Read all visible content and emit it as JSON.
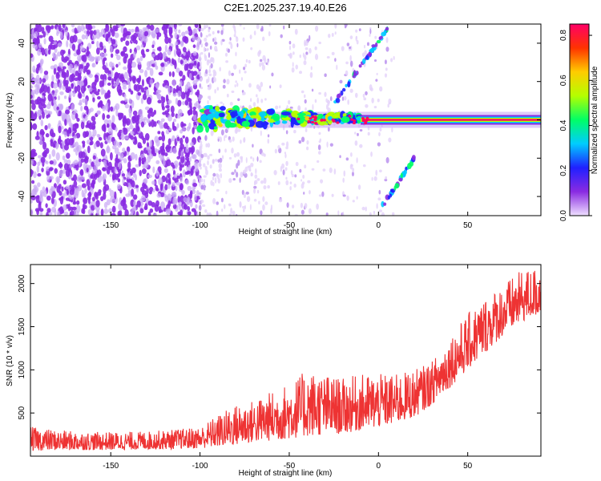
{
  "title": "C2E1.2025.237.19.40.E26",
  "chart_data": [
    {
      "type": "heatmap",
      "title": "C2E1.2025.237.19.40.E26",
      "xlabel": "Height of straight line (km)",
      "ylabel": "Frequency (Hz)",
      "xlim": [
        -195,
        91
      ],
      "ylim": [
        -50,
        50
      ],
      "xticks": [
        -150,
        -100,
        -50,
        0,
        50
      ],
      "yticks": [
        -40,
        -20,
        0,
        20,
        40
      ],
      "colorbar": {
        "label": "Normalized spectral amplitude",
        "range": [
          0.0,
          0.85
        ],
        "ticks": [
          0.0,
          0.2,
          0.4,
          0.6,
          0.8
        ],
        "tick_labels": [
          "0.0",
          "0.2",
          "0.4",
          "0.6",
          "0.8"
        ],
        "colors": [
          "#efe0ff",
          "#8a2be2",
          "#2020ff",
          "#00ccff",
          "#00ff66",
          "#b4ff00",
          "#ffcc00",
          "#ff3300",
          "#ff0066"
        ]
      },
      "features": [
        {
          "name": "noise region",
          "x_range": [
            -195,
            -100
          ],
          "y_range": [
            -50,
            50
          ],
          "amplitude": 0.05
        },
        {
          "name": "central band",
          "x_range": [
            -100,
            91
          ],
          "y_center": 0,
          "amplitude_start": 0.2,
          "amplitude_end": 0.8
        },
        {
          "name": "upper chirp",
          "x_range": [
            -25,
            5
          ],
          "y_range": [
            8,
            48
          ]
        },
        {
          "name": "lower chirp",
          "x_range": [
            0,
            20
          ],
          "y_range": [
            -48,
            -20
          ]
        }
      ]
    },
    {
      "type": "line",
      "xlabel": "Height of straight line (km)",
      "ylabel": "SNR (10 * v/v)",
      "xlim": [
        -195,
        91
      ],
      "ylim": [
        0,
        2220
      ],
      "xticks": [
        -150,
        -100,
        -50,
        0,
        50
      ],
      "yticks": [
        500,
        1000,
        1500,
        2000
      ],
      "color": "#ee3333",
      "series": [
        {
          "name": "SNR",
          "x": [
            -195,
            -180,
            -160,
            -140,
            -120,
            -100,
            -90,
            -80,
            -70,
            -60,
            -50,
            -40,
            -30,
            -20,
            -10,
            0,
            10,
            20,
            30,
            40,
            50,
            60,
            70,
            80,
            91
          ],
          "envelope_low": [
            60,
            70,
            70,
            75,
            80,
            90,
            110,
            130,
            160,
            180,
            200,
            230,
            250,
            260,
            300,
            330,
            380,
            450,
            600,
            800,
            1000,
            1200,
            1400,
            1550,
            1650
          ],
          "envelope_high": [
            340,
            300,
            280,
            280,
            300,
            340,
            480,
            600,
            650,
            750,
            850,
            1000,
            950,
            900,
            950,
            950,
            950,
            1000,
            1100,
            1400,
            1650,
            1850,
            2000,
            2150,
            2200
          ]
        }
      ]
    }
  ]
}
